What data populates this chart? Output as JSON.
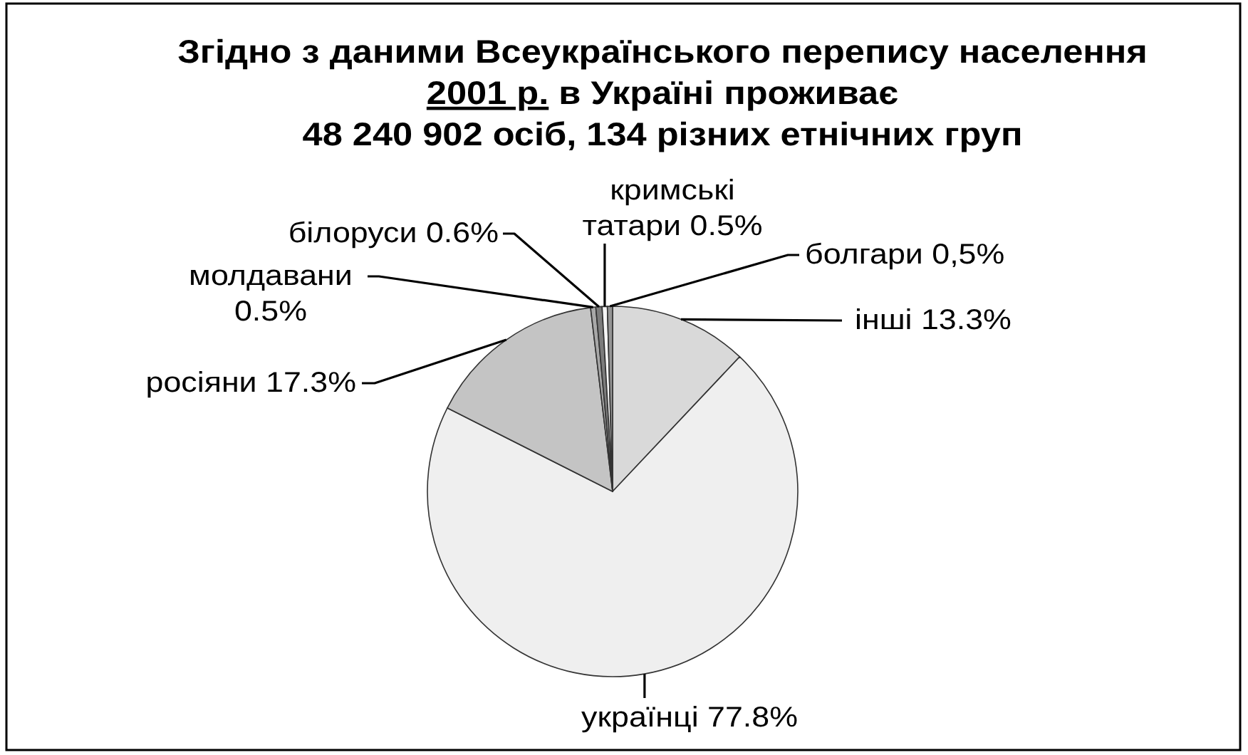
{
  "chart_data": {
    "type": "pie",
    "title": "Згідно з даними Всеукраїнського перепису населення\n2001 р. в Україні проживає\n48 240 902 осіб, 134 різних етнічних груп",
    "categories": [
      "інші",
      "українці",
      "росіяни",
      "молдавани",
      "білоруси",
      "кримські татари",
      "болгари"
    ],
    "values": [
      13.3,
      77.8,
      17.3,
      0.5,
      0.6,
      0.5,
      0.5
    ],
    "value_labels": [
      "13.3%",
      "77.8%",
      "17.3%",
      "0.5%",
      "0.6%",
      "0.5%",
      "0,5%"
    ],
    "colors": [
      "#d9d9d9",
      "#efefef",
      "#c4c4c4",
      "#a8a8a8",
      "#7c7c7c",
      "#f6f6f6",
      "#959595"
    ]
  }
}
